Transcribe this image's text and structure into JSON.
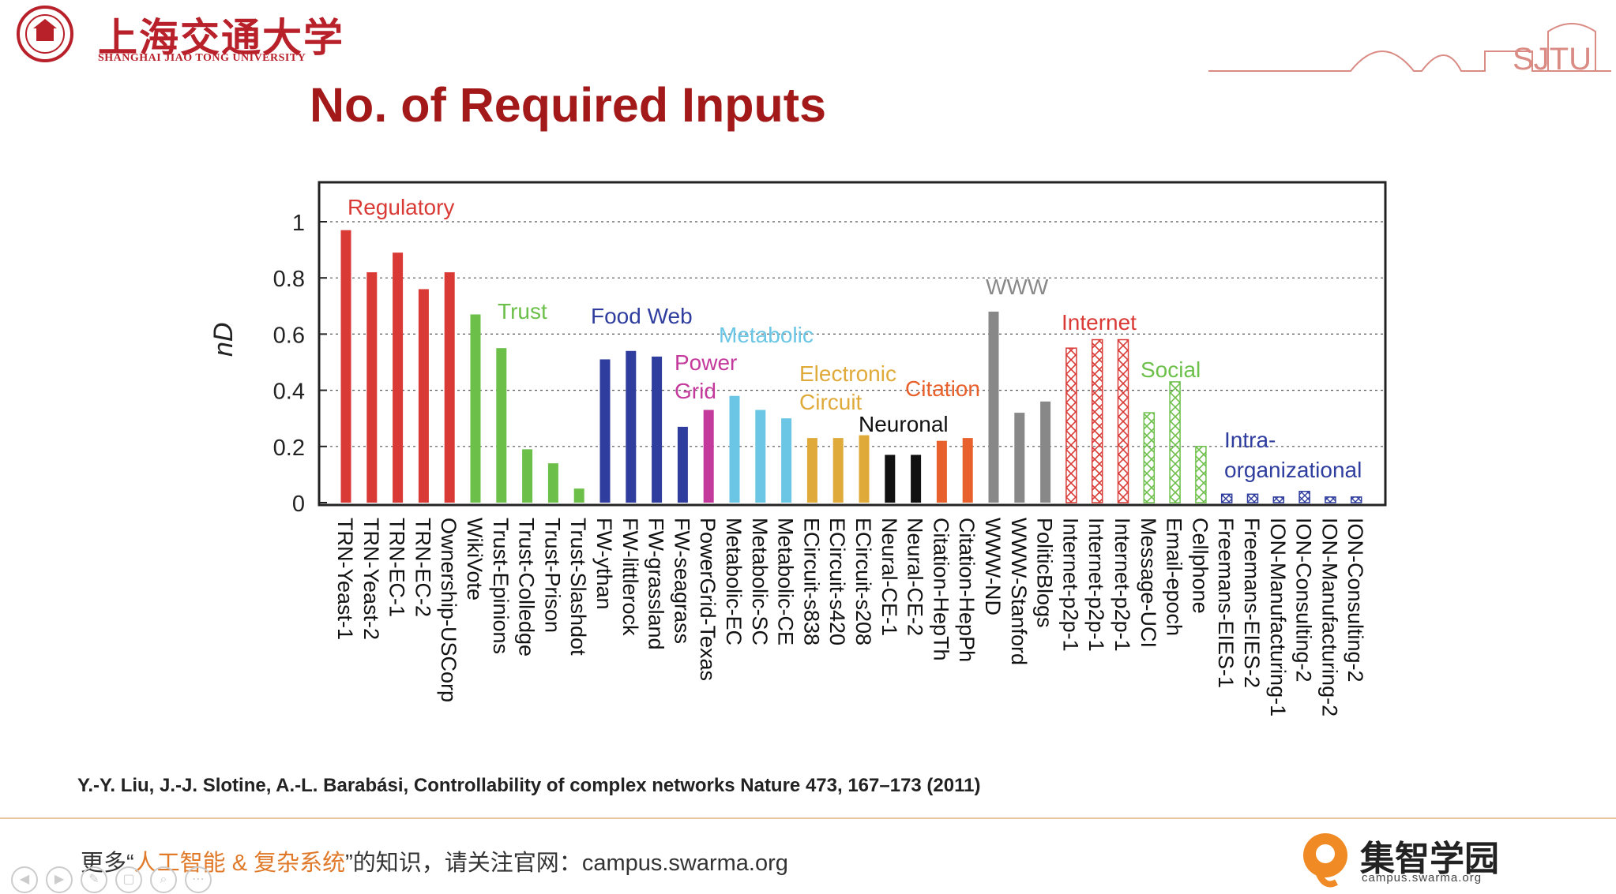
{
  "header": {
    "university_cn": "上海交通大学",
    "university_en": "SHANGHAI JIAO TONG UNIVERSITY",
    "deco_text": "SJTU"
  },
  "slide": {
    "title": "No. of Required Inputs",
    "citation": "Y.-Y. Liu, J.-J. Slotine, A.-L. Barabási, Controllability of complex networks Nature 473, 167–173 (2011)"
  },
  "footer": {
    "prefix": "更多“",
    "highlight": "人工智能 & 复杂系统",
    "suffix": "”的知识，请关注官网：",
    "url": "campus.swarma.org",
    "brand": "集智学园",
    "brand_url": "campus.swarma.org"
  },
  "chart_data": {
    "type": "bar",
    "ylabel": "nD",
    "ylim": [
      0,
      1.1
    ],
    "yticks": [
      0,
      0.2,
      0.4,
      0.6,
      0.8,
      1
    ],
    "grid": "dotted horizontal",
    "categories": [
      "TRN-Yeast-1",
      "TRN-Yeast-2",
      "TRN-EC-1",
      "TRN-EC-2",
      "Ownership-USCorp",
      "WikiVote",
      "Trust-Epinions",
      "Trust-Colledge",
      "Trust-Prison",
      "Trust-Slashdot",
      "FW-ythan",
      "FW-littlerock",
      "FW-grassland",
      "FW-seagrass",
      "PowerGrid-Texas",
      "Metabolic-EC",
      "Metabolic-SC",
      "Metabolic-CE",
      "ECircuit-s838",
      "ECircuit-s420",
      "ECircuit-s208",
      "Neural-CE-1",
      "Neural-CE-2",
      "Citation-HepTh",
      "Citation-HepPh",
      "WWW-ND",
      "WWW-Stanford",
      "PoliticBlogs",
      "Internet-p2p-1",
      "Internet-p2p-1",
      "Internet-p2p-1",
      "Message-UCI",
      "Email-epoch",
      "Cellphone",
      "Freemans-EIES-1",
      "Freemans-EIES-2",
      "ION-Manufacturing-1",
      "ION-Consulting-2",
      "ION-Manufacturing-2",
      "ION-Consulting-2"
    ],
    "values": [
      0.97,
      0.82,
      0.89,
      0.76,
      0.82,
      0.67,
      0.55,
      0.19,
      0.14,
      0.05,
      0.51,
      0.54,
      0.52,
      0.27,
      0.33,
      0.38,
      0.33,
      0.3,
      0.23,
      0.23,
      0.24,
      0.17,
      0.17,
      0.22,
      0.23,
      0.68,
      0.32,
      0.36,
      0.55,
      0.58,
      0.58,
      0.32,
      0.43,
      0.2,
      0.03,
      0.03,
      0.02,
      0.04,
      0.02,
      0.02
    ],
    "groups": [
      {
        "name": "Regulatory",
        "start": 0,
        "end": 4,
        "color": "#d93a35",
        "pattern": "solid"
      },
      {
        "name": "Trust",
        "start": 5,
        "end": 9,
        "color": "#6cc04a",
        "pattern": "solid"
      },
      {
        "name": "Food Web",
        "start": 10,
        "end": 13,
        "color": "#2f3e9e",
        "pattern": "solid"
      },
      {
        "name": "Power Grid",
        "start": 14,
        "end": 14,
        "color": "#c43a9c",
        "pattern": "solid"
      },
      {
        "name": "Metabolic",
        "start": 15,
        "end": 17,
        "color": "#6ac6e4",
        "pattern": "solid"
      },
      {
        "name": "Electronic Circuit",
        "start": 18,
        "end": 20,
        "color": "#e0aa3a",
        "pattern": "solid"
      },
      {
        "name": "Neuronal",
        "start": 21,
        "end": 22,
        "color": "#111111",
        "pattern": "solid"
      },
      {
        "name": "Citation",
        "start": 23,
        "end": 24,
        "color": "#e8602c",
        "pattern": "solid"
      },
      {
        "name": "WWW",
        "start": 25,
        "end": 27,
        "color": "#888888",
        "pattern": "solid"
      },
      {
        "name": "Internet",
        "start": 28,
        "end": 30,
        "color": "#d93a35",
        "pattern": "hatch"
      },
      {
        "name": "Social",
        "start": 31,
        "end": 33,
        "color": "#6cc04a",
        "pattern": "hatch"
      },
      {
        "name": "Intra- organizational",
        "start": 34,
        "end": 39,
        "color": "#2f3e9e",
        "pattern": "hatch"
      }
    ]
  }
}
